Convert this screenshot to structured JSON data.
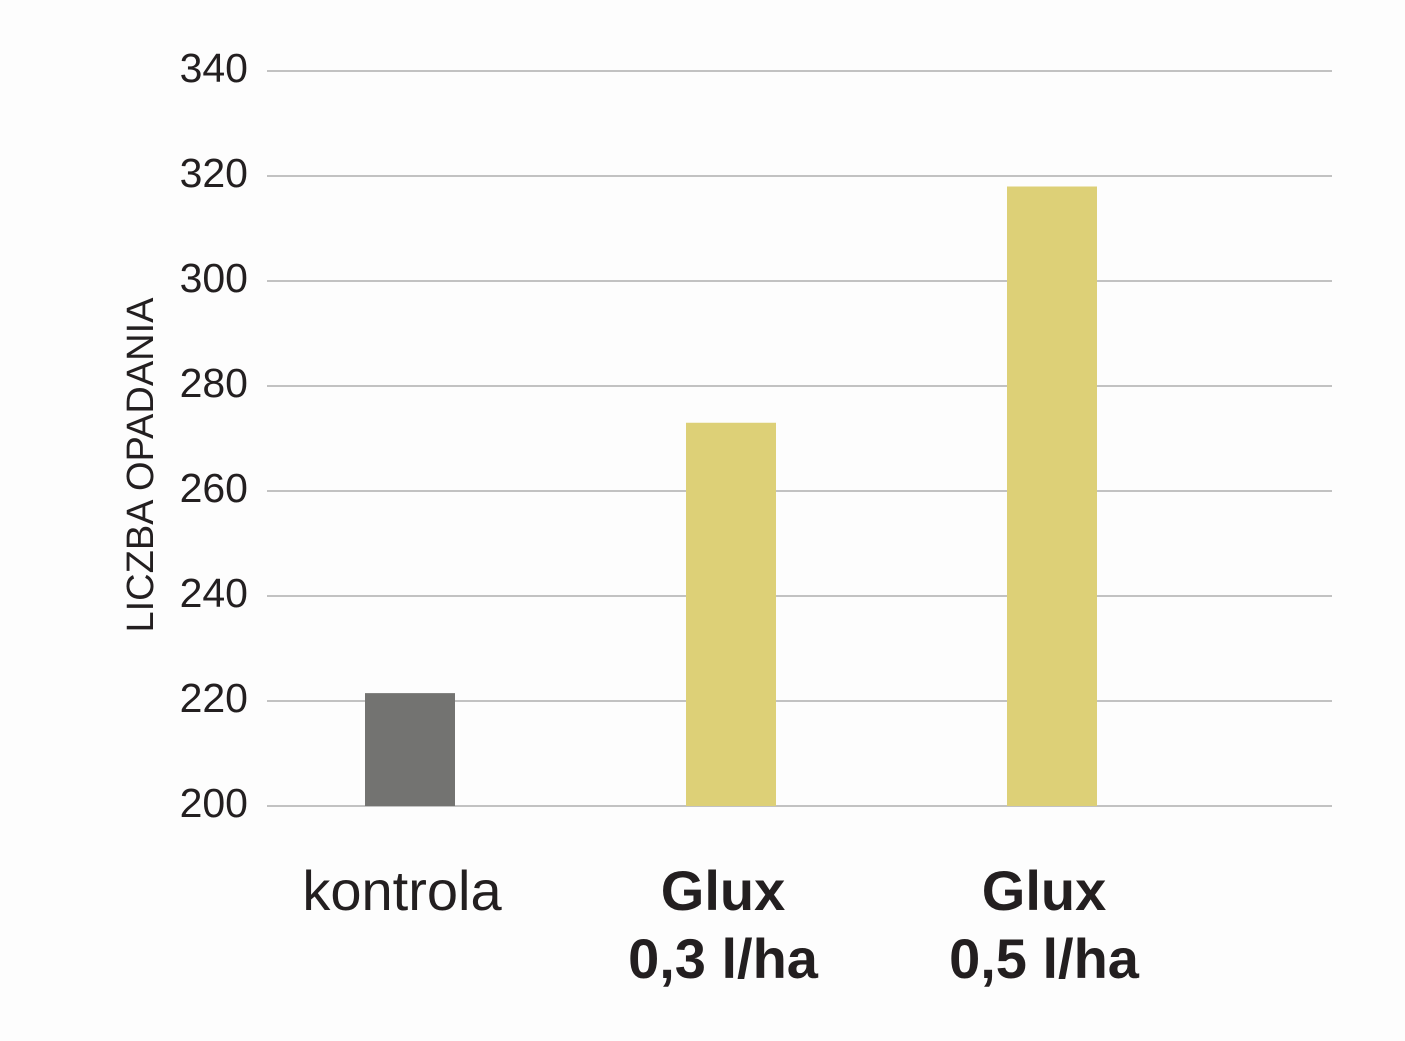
{
  "chart_data": {
    "type": "bar",
    "y_label": "LICZBA OPADANIA",
    "categories": [
      [
        "kontrola"
      ],
      [
        "Glux",
        "0,3 l/ha"
      ],
      [
        "Glux",
        "0,5 l/ha"
      ]
    ],
    "label_weight": [
      "normal",
      "bold",
      "bold"
    ],
    "values": [
      221.5,
      273,
      318
    ],
    "colors": [
      "#737371",
      "#ddd077",
      "#ddd077"
    ],
    "ylim": [
      200,
      340
    ],
    "yticks": [
      200,
      220,
      240,
      260,
      280,
      300,
      320,
      340
    ],
    "grid": true
  }
}
